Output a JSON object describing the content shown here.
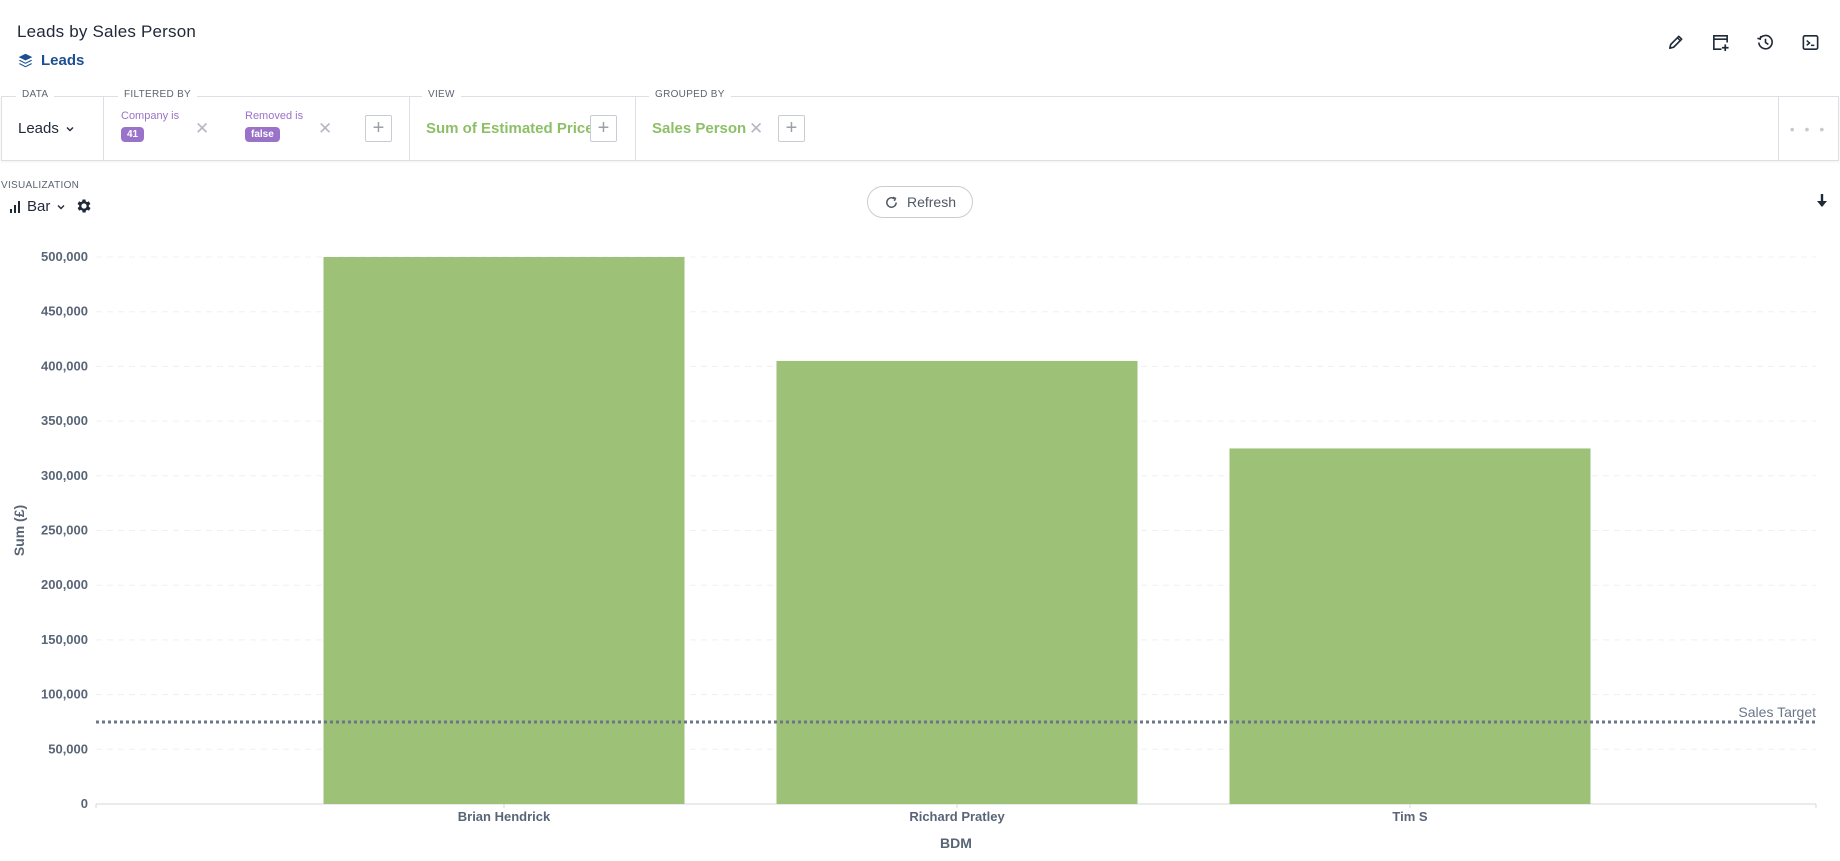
{
  "header": {
    "title": "Leads by Sales Person",
    "breadcrumb": "Leads"
  },
  "toolbar": {
    "icons": [
      "pencil-icon",
      "new-window-icon",
      "history-icon",
      "terminal-icon"
    ]
  },
  "query": {
    "data_label": "DATA",
    "data_value": "Leads",
    "filtered_label": "FILTERED BY",
    "filters": [
      {
        "label": "Company is",
        "value": "41"
      },
      {
        "label": "Removed is",
        "value": "false"
      }
    ],
    "view_label": "VIEW",
    "view_value": "Sum of Estimated Price",
    "grouped_label": "GROUPED BY",
    "grouped_value": "Sales Person",
    "more": "• • •"
  },
  "visualization": {
    "label": "VISUALIZATION",
    "type": "Bar"
  },
  "refresh_label": "Refresh",
  "colors": {
    "bar": "#9cc177",
    "accent_purple": "#9b72c9",
    "accent_green": "#8dbf67",
    "link_blue": "#1d4f91",
    "reference_line": "#6b7689"
  },
  "chart_data": {
    "type": "bar",
    "categories": [
      "Brian Hendrick",
      "Richard Pratley",
      "Tim S"
    ],
    "values": [
      500000,
      405000,
      325000
    ],
    "xlabel": "BDM",
    "ylabel": "Sum (£)",
    "ylim": [
      0,
      500000
    ],
    "yticks": [
      0,
      50000,
      100000,
      150000,
      200000,
      250000,
      300000,
      350000,
      400000,
      450000,
      500000
    ],
    "ytick_labels": [
      "0",
      "50,000",
      "100,000",
      "150,000",
      "200,000",
      "250,000",
      "300,000",
      "350,000",
      "400,000",
      "450,000",
      "500,000"
    ],
    "grid": true,
    "reference_line": {
      "label": "Sales Target",
      "value": 75000
    }
  }
}
